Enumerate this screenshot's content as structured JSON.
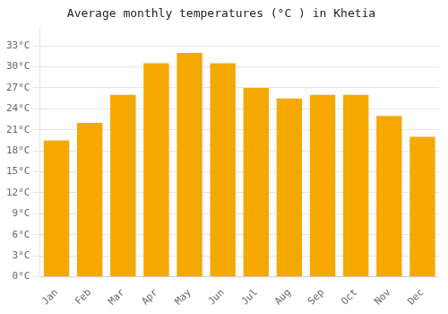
{
  "chart_data": {
    "type": "bar",
    "title": "Average monthly temperatures (°C ) in Khetia",
    "categories": [
      "Jan",
      "Feb",
      "Mar",
      "Apr",
      "May",
      "Jun",
      "Jul",
      "Aug",
      "Sep",
      "Oct",
      "Nov",
      "Dec"
    ],
    "values": [
      19.5,
      22.0,
      26.0,
      30.5,
      32.0,
      30.5,
      27.0,
      25.5,
      26.0,
      26.0,
      23.0,
      20.0
    ],
    "color": "#F5A800",
    "ylim": [
      0,
      35.5
    ],
    "yticks": [
      {
        "value": 0,
        "label": "0°C"
      },
      {
        "value": 3,
        "label": "3°C"
      },
      {
        "value": 6,
        "label": "6°C"
      },
      {
        "value": 9,
        "label": "9°C"
      },
      {
        "value": 12,
        "label": "12°C"
      },
      {
        "value": 15,
        "label": "15°C"
      },
      {
        "value": 18,
        "label": "18°C"
      },
      {
        "value": 21,
        "label": "21°C"
      },
      {
        "value": 24,
        "label": "24°C"
      },
      {
        "value": 27,
        "label": "27°C"
      },
      {
        "value": 30,
        "label": "30°C"
      },
      {
        "value": 33,
        "label": "33°C"
      }
    ],
    "grid": true
  }
}
